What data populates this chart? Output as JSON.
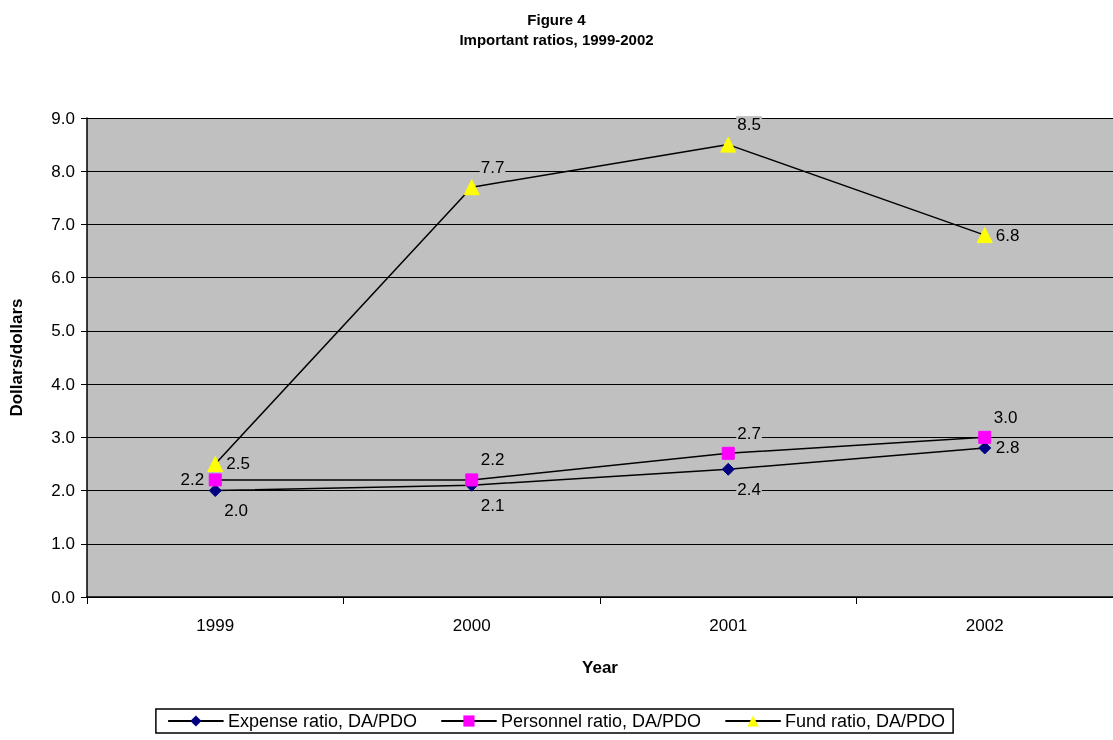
{
  "chart_data": {
    "type": "line",
    "title": "Figure 4",
    "subtitle": "Important ratios, 1999-2002",
    "xlabel": "Year",
    "ylabel": "Dollars/dollars",
    "categories": [
      "1999",
      "2000",
      "2001",
      "2002"
    ],
    "series": [
      {
        "name": "Expense ratio, DA/PDO",
        "color": "#000080",
        "marker": "diamond",
        "values": [
          2.0,
          2.1,
          2.4,
          2.8
        ],
        "value_labels": [
          "2.0",
          "2.1",
          "2.4",
          "2.8"
        ]
      },
      {
        "name": "Personnel ratio, DA/PDO",
        "color": "#ff00ff",
        "marker": "square",
        "values": [
          2.2,
          2.2,
          2.7,
          3.0
        ],
        "value_labels": [
          "2.2",
          "2.2",
          "2.7",
          "3.0"
        ]
      },
      {
        "name": "Fund ratio, DA/PDO",
        "color": "#ffff00",
        "marker": "triangle",
        "values": [
          2.5,
          7.7,
          8.5,
          6.8
        ],
        "value_labels": [
          "2.5",
          "7.7",
          "8.5",
          "6.8"
        ]
      }
    ],
    "ylim": [
      0,
      9
    ],
    "yticks": [
      {
        "value": 0,
        "label": "0.0"
      },
      {
        "value": 1,
        "label": "1.0"
      },
      {
        "value": 2,
        "label": "2.0"
      },
      {
        "value": 3,
        "label": "3.0"
      },
      {
        "value": 4,
        "label": "4.0"
      },
      {
        "value": 5,
        "label": "5.0"
      },
      {
        "value": 6,
        "label": "6.0"
      },
      {
        "value": 7,
        "label": "7.0"
      },
      {
        "value": 8,
        "label": "8.0"
      },
      {
        "value": 9,
        "label": "9.0"
      }
    ],
    "grid": "y",
    "legend": "bottom",
    "line_style": "solid"
  }
}
